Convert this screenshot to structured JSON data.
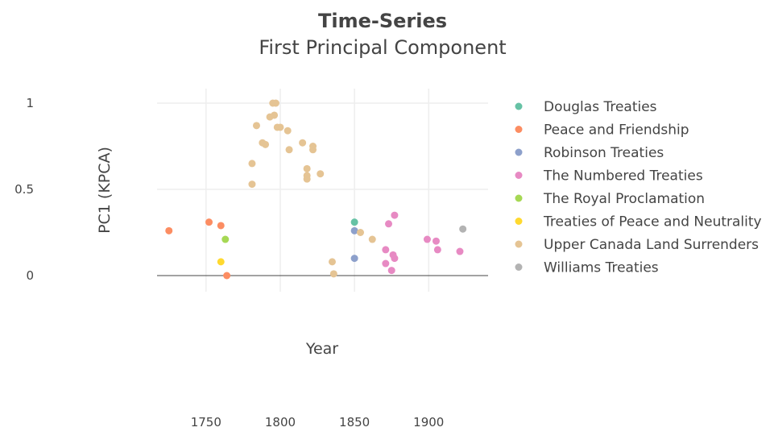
{
  "chart_data": {
    "type": "scatter",
    "title": "Time-Series",
    "subtitle": "First Principal Component",
    "xlabel": "Year",
    "ylabel": "PC1 (KPCA)",
    "xlim": [
      1717,
      1940
    ],
    "ylim": [
      0,
      1
    ],
    "x_ticks": [
      "1750",
      "1800",
      "1850",
      "1900"
    ],
    "y_ticks": [
      "0",
      "0.5",
      "1"
    ],
    "grid": true,
    "legend_position": "right",
    "series": [
      {
        "name": "Douglas Treaties",
        "color": "#66c2a5",
        "points": [
          [
            1850,
            0.31
          ]
        ]
      },
      {
        "name": "Peace and Friendship",
        "color": "#fc8d62",
        "points": [
          [
            1725,
            0.26
          ],
          [
            1752,
            0.31
          ],
          [
            1760,
            0.29
          ],
          [
            1764,
            0.0
          ]
        ]
      },
      {
        "name": "Robinson Treaties",
        "color": "#8da0cb",
        "points": [
          [
            1850,
            0.26
          ],
          [
            1850,
            0.1
          ]
        ]
      },
      {
        "name": "The Numbered Treaties",
        "color": "#e78ac3",
        "points": [
          [
            1871,
            0.15
          ],
          [
            1871,
            0.07
          ],
          [
            1873,
            0.3
          ],
          [
            1875,
            0.03
          ],
          [
            1876,
            0.12
          ],
          [
            1877,
            0.35
          ],
          [
            1877,
            0.1
          ],
          [
            1899,
            0.21
          ],
          [
            1905,
            0.2
          ],
          [
            1906,
            0.15
          ],
          [
            1921,
            0.14
          ]
        ]
      },
      {
        "name": "The Royal Proclamation",
        "color": "#a6d854",
        "points": [
          [
            1763,
            0.21
          ]
        ]
      },
      {
        "name": "Treaties of Peace and Neutrality",
        "color": "#ffd92f",
        "points": [
          [
            1760,
            0.08
          ]
        ]
      },
      {
        "name": "Upper Canada Land Surrenders",
        "color": "#e5c494",
        "points": [
          [
            1781,
            0.65
          ],
          [
            1781,
            0.53
          ],
          [
            1784,
            0.87
          ],
          [
            1788,
            0.77
          ],
          [
            1790,
            0.76
          ],
          [
            1793,
            0.92
          ],
          [
            1795,
            1.0
          ],
          [
            1796,
            0.93
          ],
          [
            1797,
            1.0
          ],
          [
            1798,
            0.86
          ],
          [
            1800,
            0.86
          ],
          [
            1805,
            0.84
          ],
          [
            1806,
            0.73
          ],
          [
            1815,
            0.77
          ],
          [
            1818,
            0.62
          ],
          [
            1818,
            0.58
          ],
          [
            1818,
            0.56
          ],
          [
            1822,
            0.75
          ],
          [
            1822,
            0.73
          ],
          [
            1827,
            0.59
          ],
          [
            1835,
            0.08
          ],
          [
            1836,
            0.01
          ],
          [
            1854,
            0.25
          ],
          [
            1862,
            0.21
          ]
        ]
      },
      {
        "name": "Williams Treaties",
        "color": "#b3b3b3",
        "points": [
          [
            1923,
            0.27
          ]
        ]
      }
    ]
  }
}
